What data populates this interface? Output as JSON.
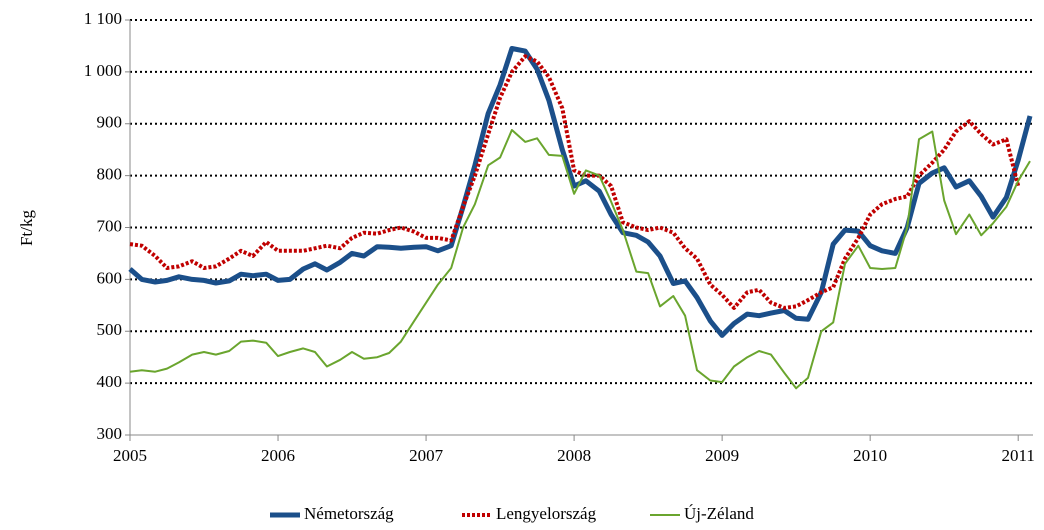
{
  "chart_data": {
    "type": "line",
    "ylabel": "Ft/kg",
    "x": [
      2005,
      2005.08,
      2005.17,
      2005.25,
      2005.33,
      2005.42,
      2005.5,
      2005.58,
      2005.67,
      2005.75,
      2005.83,
      2005.92,
      2006,
      2006.08,
      2006.17,
      2006.25,
      2006.33,
      2006.42,
      2006.5,
      2006.58,
      2006.67,
      2006.75,
      2006.83,
      2006.92,
      2007,
      2007.08,
      2007.17,
      2007.25,
      2007.33,
      2007.42,
      2007.5,
      2007.58,
      2007.67,
      2007.75,
      2007.83,
      2007.92,
      2008,
      2008.08,
      2008.17,
      2008.25,
      2008.33,
      2008.42,
      2008.5,
      2008.58,
      2008.67,
      2008.75,
      2008.83,
      2008.92,
      2009,
      2009.08,
      2009.17,
      2009.25,
      2009.33,
      2009.42,
      2009.5,
      2009.58,
      2009.67,
      2009.75,
      2009.83,
      2009.92,
      2010,
      2010.08,
      2010.17,
      2010.25,
      2010.33,
      2010.42,
      2010.5,
      2010.58,
      2010.67,
      2010.75,
      2010.83,
      2010.92,
      2011,
      2011.08
    ],
    "series": [
      {
        "name": "Németország",
        "color": "#1b4f8a",
        "style": "solid",
        "width": 5,
        "values": [
          620,
          600,
          595,
          598,
          605,
          600,
          598,
          593,
          597,
          610,
          607,
          610,
          598,
          600,
          620,
          630,
          618,
          633,
          650,
          645,
          663,
          662,
          660,
          662,
          663,
          655,
          665,
          740,
          820,
          920,
          975,
          1045,
          1040,
          1005,
          945,
          850,
          780,
          790,
          770,
          725,
          690,
          685,
          672,
          645,
          592,
          597,
          565,
          520,
          492,
          515,
          533,
          530,
          535,
          540,
          525,
          523,
          575,
          668,
          695,
          693,
          665,
          655,
          650,
          700,
          785,
          805,
          815,
          778,
          790,
          760,
          720,
          758,
          830,
          915
        ]
      },
      {
        "name": "Lengyelország",
        "color": "#c00000",
        "style": "dotted",
        "width": 4,
        "values": [
          668,
          665,
          645,
          622,
          625,
          635,
          622,
          625,
          640,
          655,
          645,
          672,
          655,
          655,
          655,
          660,
          665,
          660,
          680,
          690,
          688,
          695,
          700,
          692,
          680,
          680,
          675,
          740,
          800,
          880,
          950,
          1000,
          1030,
          1020,
          990,
          930,
          810,
          800,
          800,
          780,
          710,
          700,
          695,
          700,
          690,
          660,
          640,
          590,
          570,
          545,
          575,
          580,
          555,
          545,
          548,
          560,
          575,
          585,
          640,
          680,
          725,
          745,
          755,
          760,
          800,
          825,
          850,
          885,
          905,
          880,
          860,
          870,
          780,
          null
        ]
      },
      {
        "name": "Új-Zéland",
        "color": "#6aa52e",
        "style": "solid",
        "width": 2,
        "values": [
          422,
          425,
          422,
          428,
          440,
          455,
          460,
          455,
          462,
          480,
          482,
          478,
          452,
          460,
          467,
          460,
          432,
          445,
          460,
          447,
          450,
          458,
          480,
          520,
          555,
          590,
          622,
          700,
          745,
          820,
          835,
          888,
          865,
          872,
          840,
          838,
          765,
          810,
          800,
          750,
          695,
          615,
          612,
          548,
          568,
          530,
          425,
          405,
          402,
          432,
          450,
          462,
          455,
          420,
          390,
          410,
          500,
          517,
          630,
          665,
          622,
          620,
          622,
          700,
          870,
          885,
          752,
          687,
          725,
          685,
          708,
          740,
          790,
          828
        ]
      }
    ],
    "xlim": [
      2005,
      2011.1
    ],
    "xticks": [
      2005,
      2006,
      2007,
      2008,
      2009,
      2010,
      2011
    ],
    "ylim": [
      300,
      1100
    ],
    "yticks": [
      300,
      400,
      500,
      600,
      700,
      800,
      900,
      {
        "value": 1000,
        "label": "1 000"
      },
      {
        "value": 1100,
        "label": "1 100"
      }
    ],
    "grid": true,
    "legend": "bottom"
  }
}
